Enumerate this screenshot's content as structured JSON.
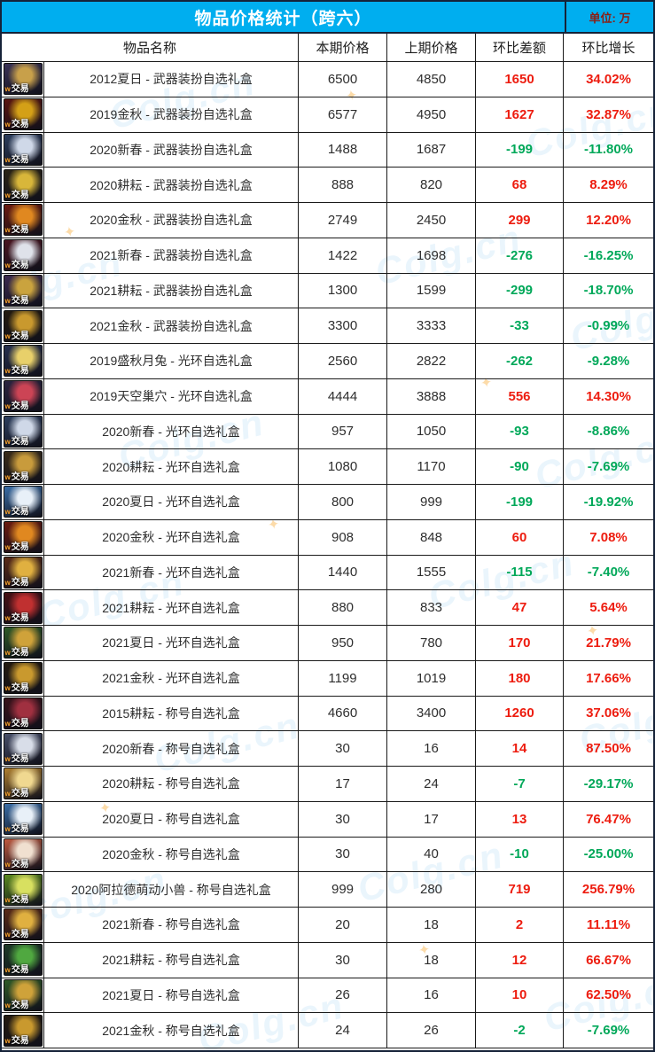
{
  "header": {
    "title": "物品价格统计（跨六）",
    "unit": "单位: 万"
  },
  "columns": {
    "name": "物品名称",
    "current": "本期价格",
    "previous": "上期价格",
    "diff": "环比差额",
    "growth": "环比增长"
  },
  "colors": {
    "header_bg": "#00AEEF",
    "title_text": "#FFFFFF",
    "unit_text": "#8C1D12",
    "up": "#ED1C0F",
    "down": "#00A859",
    "grid_line": "#1A1A1A"
  },
  "icon_label": "交易",
  "watermark": "Colg.cn",
  "rows": [
    {
      "name": "2012夏日 - 武器装扮自选礼盒",
      "current": "6500",
      "previous": "4850",
      "diff": "1650",
      "growth": "34.02%",
      "trend": "up",
      "icon": {
        "c1": "#3a3358",
        "c2": "#c8a04a"
      }
    },
    {
      "name": "2019金秋 - 武器装扮自选礼盒",
      "current": "6577",
      "previous": "4950",
      "diff": "1627",
      "growth": "32.87%",
      "trend": "up",
      "icon": {
        "c1": "#5a1410",
        "c2": "#d4a017"
      }
    },
    {
      "name": "2020新春 - 武器装扮自选礼盒",
      "current": "1488",
      "previous": "1687",
      "diff": "-199",
      "growth": "-11.80%",
      "trend": "down",
      "icon": {
        "c1": "#2c3e5e",
        "c2": "#cfd8e8"
      }
    },
    {
      "name": "2020耕耘 - 武器装扮自选礼盒",
      "current": "888",
      "previous": "820",
      "diff": "68",
      "growth": "8.29%",
      "trend": "up",
      "icon": {
        "c1": "#2a2416",
        "c2": "#d8b63a"
      }
    },
    {
      "name": "2020金秋 - 武器装扮自选礼盒",
      "current": "2749",
      "previous": "2450",
      "diff": "299",
      "growth": "12.20%",
      "trend": "up",
      "icon": {
        "c1": "#6b1a10",
        "c2": "#e08820"
      }
    },
    {
      "name": "2021新春 - 武器装扮自选礼盒",
      "current": "1422",
      "previous": "1698",
      "diff": "-276",
      "growth": "-16.25%",
      "trend": "down",
      "icon": {
        "c1": "#4a1520",
        "c2": "#dfe2ea"
      }
    },
    {
      "name": "2021耕耘 - 武器装扮自选礼盒",
      "current": "1300",
      "previous": "1599",
      "diff": "-299",
      "growth": "-18.70%",
      "trend": "down",
      "icon": {
        "c1": "#3b2a50",
        "c2": "#caa33e"
      }
    },
    {
      "name": "2021金秋 - 武器装扮自选礼盒",
      "current": "3300",
      "previous": "3333",
      "diff": "-33",
      "growth": "-0.99%",
      "trend": "down",
      "icon": {
        "c1": "#231a10",
        "c2": "#c9992e"
      }
    },
    {
      "name": "2019盛秋月兔 - 光环自选礼盒",
      "current": "2560",
      "previous": "2822",
      "diff": "-262",
      "growth": "-9.28%",
      "trend": "down",
      "icon": {
        "c1": "#26304f",
        "c2": "#e8d06a"
      }
    },
    {
      "name": "2019天空巢穴 - 光环自选礼盒",
      "current": "4444",
      "previous": "3888",
      "diff": "556",
      "growth": "14.30%",
      "trend": "up",
      "icon": {
        "c1": "#2a2440",
        "c2": "#cc4455"
      }
    },
    {
      "name": "2020新春 - 光环自选礼盒",
      "current": "957",
      "previous": "1050",
      "diff": "-93",
      "growth": "-8.86%",
      "trend": "down",
      "icon": {
        "c1": "#2c3e5e",
        "c2": "#cfd8e8"
      }
    },
    {
      "name": "2020耕耘 - 光环自选礼盒",
      "current": "1080",
      "previous": "1170",
      "diff": "-90",
      "growth": "-7.69%",
      "trend": "down",
      "icon": {
        "c1": "#3a2c1a",
        "c2": "#c89b3c"
      }
    },
    {
      "name": "2020夏日 - 光环自选礼盒",
      "current": "800",
      "previous": "999",
      "diff": "-199",
      "growth": "-19.92%",
      "trend": "down",
      "icon": {
        "c1": "#3a6ea8",
        "c2": "#e8f0f8"
      }
    },
    {
      "name": "2020金秋 - 光环自选礼盒",
      "current": "908",
      "previous": "848",
      "diff": "60",
      "growth": "7.08%",
      "trend": "up",
      "icon": {
        "c1": "#6b1a10",
        "c2": "#e08820"
      }
    },
    {
      "name": "2021新春 - 光环自选礼盒",
      "current": "1440",
      "previous": "1555",
      "diff": "-115",
      "growth": "-7.40%",
      "trend": "down",
      "icon": {
        "c1": "#5a2a18",
        "c2": "#e0b040"
      }
    },
    {
      "name": "2021耕耘 - 光环自选礼盒",
      "current": "880",
      "previous": "833",
      "diff": "47",
      "growth": "5.64%",
      "trend": "up",
      "icon": {
        "c1": "#451015",
        "c2": "#c03030"
      }
    },
    {
      "name": "2021夏日 - 光环自选礼盒",
      "current": "950",
      "previous": "780",
      "diff": "170",
      "growth": "21.79%",
      "trend": "up",
      "icon": {
        "c1": "#2e5a28",
        "c2": "#cfa23a"
      }
    },
    {
      "name": "2021金秋 - 光环自选礼盒",
      "current": "1199",
      "previous": "1019",
      "diff": "180",
      "growth": "17.66%",
      "trend": "up",
      "icon": {
        "c1": "#231a10",
        "c2": "#c9992e"
      }
    },
    {
      "name": "2015耕耘 - 称号自选礼盒",
      "current": "4660",
      "previous": "3400",
      "diff": "1260",
      "growth": "37.06%",
      "trend": "up",
      "icon": {
        "c1": "#38121a",
        "c2": "#a03040"
      }
    },
    {
      "name": "2020新春 - 称号自选礼盒",
      "current": "30",
      "previous": "16",
      "diff": "14",
      "growth": "87.50%",
      "trend": "up",
      "icon": {
        "c1": "#48506a",
        "c2": "#d8dde8"
      }
    },
    {
      "name": "2020耕耘 - 称号自选礼盒",
      "current": "17",
      "previous": "24",
      "diff": "-7",
      "growth": "-29.17%",
      "trend": "down",
      "icon": {
        "c1": "#b08030",
        "c2": "#f0d890"
      }
    },
    {
      "name": "2020夏日 - 称号自选礼盒",
      "current": "30",
      "previous": "17",
      "diff": "13",
      "growth": "76.47%",
      "trend": "up",
      "icon": {
        "c1": "#3a6ea8",
        "c2": "#e8f0f8"
      }
    },
    {
      "name": "2020金秋 - 称号自选礼盒",
      "current": "30",
      "previous": "40",
      "diff": "-10",
      "growth": "-25.00%",
      "trend": "down",
      "icon": {
        "c1": "#c05a40",
        "c2": "#f0e0d0"
      }
    },
    {
      "name": "2020阿拉德萌动小兽 - 称号自选礼盒",
      "current": "999",
      "previous": "280",
      "diff": "719",
      "growth": "256.79%",
      "trend": "up",
      "icon": {
        "c1": "#5a8a20",
        "c2": "#d8e060"
      }
    },
    {
      "name": "2021新春 - 称号自选礼盒",
      "current": "20",
      "previous": "18",
      "diff": "2",
      "growth": "11.11%",
      "trend": "up",
      "icon": {
        "c1": "#5a2a18",
        "c2": "#e0b040"
      }
    },
    {
      "name": "2021耕耘 - 称号自选礼盒",
      "current": "30",
      "previous": "18",
      "diff": "12",
      "growth": "66.67%",
      "trend": "up",
      "icon": {
        "c1": "#1e3a28",
        "c2": "#50a840"
      }
    },
    {
      "name": "2021夏日 - 称号自选礼盒",
      "current": "26",
      "previous": "16",
      "diff": "10",
      "growth": "62.50%",
      "trend": "up",
      "icon": {
        "c1": "#2e5a28",
        "c2": "#cfa23a"
      }
    },
    {
      "name": "2021金秋 - 称号自选礼盒",
      "current": "24",
      "previous": "26",
      "diff": "-2",
      "growth": "-7.69%",
      "trend": "down",
      "icon": {
        "c1": "#231a10",
        "c2": "#c9992e"
      }
    }
  ]
}
